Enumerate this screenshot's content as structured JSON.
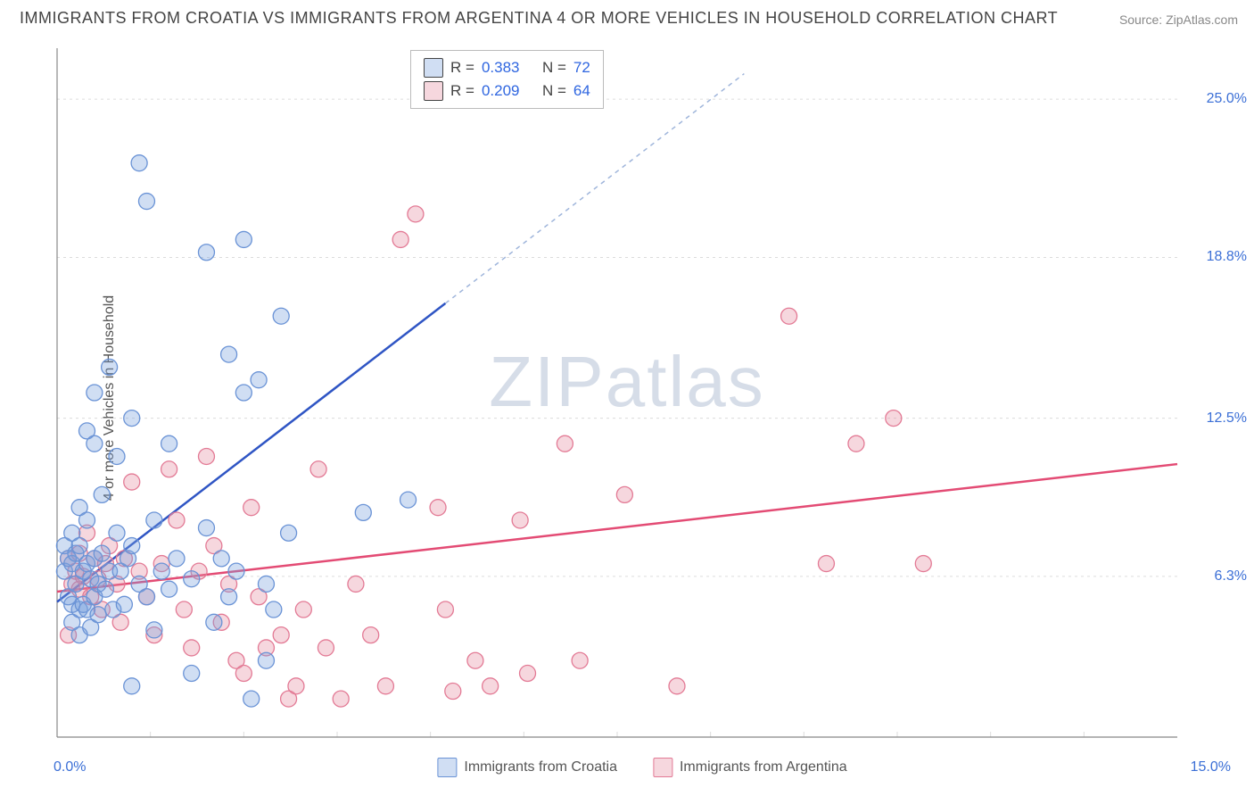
{
  "title": "IMMIGRANTS FROM CROATIA VS IMMIGRANTS FROM ARGENTINA 4 OR MORE VEHICLES IN HOUSEHOLD CORRELATION CHART",
  "source": "Source: ZipAtlas.com",
  "ylabel": "4 or more Vehicles in Household",
  "watermark_zip": "ZIP",
  "watermark_atlas": "atlas",
  "chart": {
    "type": "scatter",
    "background_color": "#ffffff",
    "grid_color": "#dcdcdc",
    "axis_color": "#888888",
    "xlim": [
      0.0,
      15.0
    ],
    "ylim": [
      0.0,
      27.0
    ],
    "xticks": [
      0.0,
      15.0
    ],
    "xtick_labels": [
      "0.0%",
      "15.0%"
    ],
    "yticks": [
      6.3,
      12.5,
      18.8,
      25.0
    ],
    "ytick_labels": [
      "6.3%",
      "12.5%",
      "18.8%",
      "25.0%"
    ],
    "series": [
      {
        "name": "Immigrants from Croatia",
        "color_fill": "rgba(120,160,220,0.35)",
        "color_stroke": "#6a93d6",
        "marker_radius": 9,
        "R": "0.383",
        "N": "72",
        "trend_line": {
          "x1": 0.0,
          "y1": 5.3,
          "x2": 5.2,
          "y2": 17.0,
          "color": "#2f55c4",
          "width": 2.5
        },
        "trend_dash": {
          "x1": 5.2,
          "y1": 17.0,
          "x2": 9.2,
          "y2": 26.0,
          "color": "#9fb5db",
          "width": 1.5
        },
        "points": [
          [
            0.1,
            7.5
          ],
          [
            0.1,
            6.5
          ],
          [
            0.15,
            7.0
          ],
          [
            0.15,
            5.5
          ],
          [
            0.2,
            6.8
          ],
          [
            0.2,
            8.0
          ],
          [
            0.2,
            5.2
          ],
          [
            0.2,
            4.5
          ],
          [
            0.25,
            7.2
          ],
          [
            0.25,
            6.0
          ],
          [
            0.3,
            9.0
          ],
          [
            0.3,
            7.5
          ],
          [
            0.3,
            5.0
          ],
          [
            0.3,
            4.0
          ],
          [
            0.35,
            6.5
          ],
          [
            0.35,
            5.2
          ],
          [
            0.4,
            12.0
          ],
          [
            0.4,
            8.5
          ],
          [
            0.4,
            6.8
          ],
          [
            0.4,
            5.0
          ],
          [
            0.45,
            6.2
          ],
          [
            0.45,
            4.3
          ],
          [
            0.5,
            13.5
          ],
          [
            0.5,
            11.5
          ],
          [
            0.5,
            7.0
          ],
          [
            0.5,
            5.5
          ],
          [
            0.55,
            6.0
          ],
          [
            0.55,
            4.8
          ],
          [
            0.6,
            9.5
          ],
          [
            0.6,
            7.2
          ],
          [
            0.65,
            5.8
          ],
          [
            0.7,
            14.5
          ],
          [
            0.7,
            6.5
          ],
          [
            0.75,
            5.0
          ],
          [
            0.8,
            11.0
          ],
          [
            0.8,
            8.0
          ],
          [
            0.85,
            6.5
          ],
          [
            0.9,
            5.2
          ],
          [
            0.95,
            7.0
          ],
          [
            1.0,
            12.5
          ],
          [
            1.0,
            7.5
          ],
          [
            1.1,
            22.5
          ],
          [
            1.1,
            6.0
          ],
          [
            1.2,
            21.0
          ],
          [
            1.2,
            5.5
          ],
          [
            1.3,
            8.5
          ],
          [
            1.3,
            4.2
          ],
          [
            1.4,
            6.5
          ],
          [
            1.5,
            11.5
          ],
          [
            1.5,
            5.8
          ],
          [
            1.6,
            7.0
          ],
          [
            1.8,
            6.2
          ],
          [
            1.8,
            2.5
          ],
          [
            2.0,
            19.0
          ],
          [
            2.0,
            8.2
          ],
          [
            2.1,
            4.5
          ],
          [
            2.2,
            7.0
          ],
          [
            2.3,
            15.0
          ],
          [
            2.3,
            5.5
          ],
          [
            2.4,
            6.5
          ],
          [
            2.5,
            19.5
          ],
          [
            2.5,
            13.5
          ],
          [
            2.6,
            1.5
          ],
          [
            2.7,
            14.0
          ],
          [
            2.8,
            6.0
          ],
          [
            2.8,
            3.0
          ],
          [
            2.9,
            5.0
          ],
          [
            3.0,
            16.5
          ],
          [
            3.1,
            8.0
          ],
          [
            4.1,
            8.8
          ],
          [
            4.7,
            9.3
          ],
          [
            1.0,
            2.0
          ]
        ]
      },
      {
        "name": "Immigrants from Argentina",
        "color_fill": "rgba(230,140,160,0.35)",
        "color_stroke": "#e37a95",
        "marker_radius": 9,
        "R": "0.209",
        "N": "64",
        "trend_line": {
          "x1": 0.0,
          "y1": 5.7,
          "x2": 15.0,
          "y2": 10.7,
          "color": "#e34b74",
          "width": 2.5
        },
        "points": [
          [
            0.15,
            7.0
          ],
          [
            0.2,
            6.0
          ],
          [
            0.25,
            6.5
          ],
          [
            0.3,
            7.2
          ],
          [
            0.3,
            5.8
          ],
          [
            0.35,
            6.3
          ],
          [
            0.4,
            8.0
          ],
          [
            0.45,
            5.5
          ],
          [
            0.5,
            7.0
          ],
          [
            0.55,
            6.2
          ],
          [
            0.6,
            5.0
          ],
          [
            0.65,
            6.8
          ],
          [
            0.7,
            7.5
          ],
          [
            0.8,
            6.0
          ],
          [
            0.85,
            4.5
          ],
          [
            0.9,
            7.0
          ],
          [
            1.0,
            10.0
          ],
          [
            1.1,
            6.5
          ],
          [
            1.2,
            5.5
          ],
          [
            1.3,
            4.0
          ],
          [
            1.4,
            6.8
          ],
          [
            1.5,
            10.5
          ],
          [
            1.6,
            8.5
          ],
          [
            1.7,
            5.0
          ],
          [
            1.8,
            3.5
          ],
          [
            1.9,
            6.5
          ],
          [
            2.0,
            11.0
          ],
          [
            2.1,
            7.5
          ],
          [
            2.2,
            4.5
          ],
          [
            2.3,
            6.0
          ],
          [
            2.4,
            3.0
          ],
          [
            2.5,
            2.5
          ],
          [
            2.6,
            9.0
          ],
          [
            2.7,
            5.5
          ],
          [
            2.8,
            3.5
          ],
          [
            3.0,
            4.0
          ],
          [
            3.1,
            1.5
          ],
          [
            3.2,
            2.0
          ],
          [
            3.3,
            5.0
          ],
          [
            3.5,
            10.5
          ],
          [
            3.6,
            3.5
          ],
          [
            3.8,
            1.5
          ],
          [
            4.0,
            6.0
          ],
          [
            4.2,
            4.0
          ],
          [
            4.4,
            2.0
          ],
          [
            4.6,
            19.5
          ],
          [
            4.8,
            20.5
          ],
          [
            5.1,
            9.0
          ],
          [
            5.2,
            5.0
          ],
          [
            5.3,
            1.8
          ],
          [
            5.6,
            3.0
          ],
          [
            5.8,
            2.0
          ],
          [
            6.2,
            8.5
          ],
          [
            6.3,
            2.5
          ],
          [
            6.8,
            11.5
          ],
          [
            7.0,
            3.0
          ],
          [
            7.6,
            9.5
          ],
          [
            8.3,
            2.0
          ],
          [
            9.8,
            16.5
          ],
          [
            10.3,
            6.8
          ],
          [
            10.7,
            11.5
          ],
          [
            11.2,
            12.5
          ],
          [
            11.6,
            6.8
          ],
          [
            0.15,
            4.0
          ]
        ]
      }
    ],
    "legend_box": {
      "rows": [
        {
          "swatch": "blue",
          "label_R": "R =",
          "val_R": "0.383",
          "label_N": "N =",
          "val_N": "72"
        },
        {
          "swatch": "pink",
          "label_R": "R =",
          "val_R": "0.209",
          "label_N": "N =",
          "val_N": "64"
        }
      ]
    },
    "legend_bottom": [
      {
        "swatch": "blue",
        "label": "Immigrants from Croatia"
      },
      {
        "swatch": "pink",
        "label": "Immigrants from Argentina"
      }
    ]
  }
}
